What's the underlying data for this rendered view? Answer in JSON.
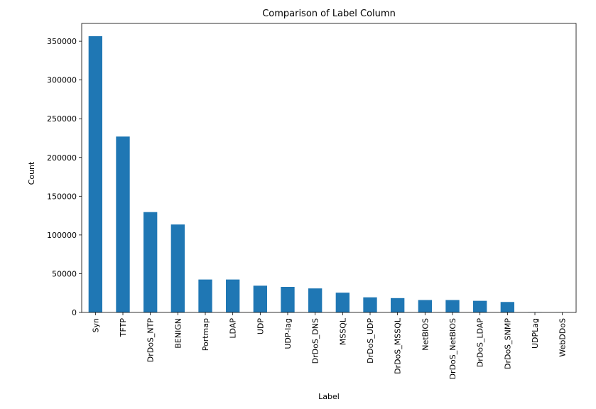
{
  "chart_data": {
    "type": "bar",
    "title": "Comparison of Label Column",
    "xlabel": "Label",
    "ylabel": "Count",
    "categories": [
      "Syn",
      "TFTP",
      "DrDoS_NTP",
      "BENIGN",
      "Portmap",
      "LDAP",
      "UDP",
      "UDP-lag",
      "DrDoS_DNS",
      "MSSQL",
      "DrDoS_UDP",
      "DrDoS_MSSQL",
      "NetBIOS",
      "DrDoS_NetBIOS",
      "DrDoS_LDAP",
      "DrDoS_SNMP",
      "UDPLag",
      "WebDDoS"
    ],
    "values": [
      356500,
      227000,
      129500,
      113500,
      42500,
      42500,
      34500,
      33000,
      31000,
      25500,
      19500,
      18500,
      16000,
      16000,
      15000,
      13500,
      200,
      50
    ],
    "ylim": [
      0,
      373000
    ],
    "yticks": [
      0,
      50000,
      100000,
      150000,
      200000,
      250000,
      300000,
      350000
    ],
    "ytick_labels": [
      "0",
      "50000",
      "100000",
      "150000",
      "200000",
      "250000",
      "300000",
      "350000"
    ],
    "grid": false,
    "legend": "none",
    "bar_color": "#1f77b4"
  }
}
